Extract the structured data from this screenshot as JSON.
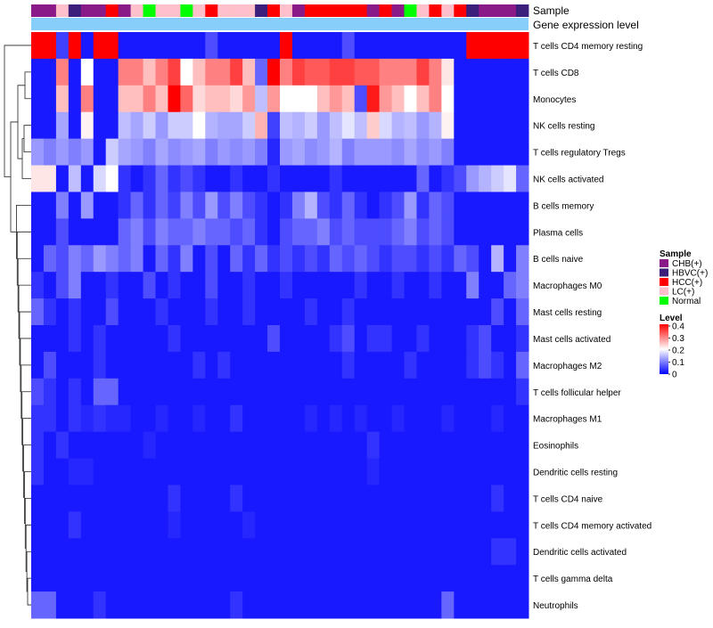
{
  "chart_data": {
    "type": "heatmap",
    "title": "",
    "annotation_rows": [
      "Sample",
      "Gene expression level"
    ],
    "rows": [
      "T cells CD4 memory resting",
      "T cells CD8",
      "Monocytes",
      "NK cells resting",
      "T cells regulatory  Tregs",
      "NK cells activated",
      "B cells memory",
      "Plasma cells",
      "B cells naive",
      "Macrophages M0",
      "Mast cells resting",
      "Mast cells activated",
      "Macrophages M2",
      "T cells follicular helper",
      "Macrophages M1",
      "Eosinophils",
      "Dendritic cells resting",
      "T cells CD4 naive",
      "T cells CD4 memory activated",
      "Dendritic cells activated",
      "T cells gamma delta",
      "Neutrophils"
    ],
    "sample_groups": [
      "CHB(+)",
      "CHB(+)",
      "LC(+)",
      "HBVC(+)",
      "CHB(+)",
      "CHB(+)",
      "HCC(+)",
      "CHB(+)",
      "LC(+)",
      "Normal",
      "LC(+)",
      "LC(+)",
      "Normal",
      "LC(+)",
      "HCC(+)",
      "LC(+)",
      "LC(+)",
      "LC(+)",
      "HBVC(+)",
      "HCC(+)",
      "LC(+)",
      "CHB(+)",
      "HCC(+)",
      "HCC(+)",
      "HCC(+)",
      "HCC(+)",
      "HCC(+)",
      "CHB(+)",
      "HCC(+)",
      "CHB(+)",
      "Normal",
      "LC(+)",
      "HCC(+)",
      "LC(+)",
      "HCC(+)",
      "HBVC(+)",
      "CHB(+)",
      "CHB(+)",
      "CHB(+)",
      "HBVC(+)"
    ],
    "values": [
      [
        0.4,
        0.4,
        0.05,
        0.4,
        0.02,
        0.4,
        0.4,
        0.02,
        0.02,
        0.02,
        0.02,
        0.02,
        0.02,
        0.02,
        0.06,
        0.02,
        0.02,
        0.02,
        0.02,
        0.02,
        0.4,
        0.02,
        0.02,
        0.02,
        0.02,
        0.06,
        0.02,
        0.02,
        0.02,
        0.02,
        0.02,
        0.02,
        0.02,
        0.02,
        0.02,
        0.4,
        0.4,
        0.4,
        0.4,
        0.4
      ],
      [
        0.02,
        0.02,
        0.3,
        0.02,
        0.2,
        0.02,
        0.02,
        0.3,
        0.3,
        0.25,
        0.3,
        0.35,
        0.2,
        0.25,
        0.3,
        0.3,
        0.35,
        0.25,
        0.08,
        0.4,
        0.3,
        0.35,
        0.33,
        0.33,
        0.35,
        0.35,
        0.33,
        0.33,
        0.3,
        0.3,
        0.3,
        0.35,
        0.3,
        0.22,
        0.02,
        0.02,
        0.02,
        0.02,
        0.02,
        0.02
      ],
      [
        0.02,
        0.02,
        0.25,
        0.02,
        0.3,
        0.02,
        0.02,
        0.25,
        0.25,
        0.3,
        0.25,
        0.4,
        0.32,
        0.23,
        0.25,
        0.25,
        0.23,
        0.28,
        0.15,
        0.28,
        0.2,
        0.2,
        0.2,
        0.25,
        0.28,
        0.25,
        0.06,
        0.38,
        0.28,
        0.25,
        0.2,
        0.25,
        0.3,
        0.2,
        0.02,
        0.02,
        0.02,
        0.02,
        0.02,
        0.02
      ],
      [
        0.02,
        0.02,
        0.13,
        0.02,
        0.21,
        0.02,
        0.02,
        0.15,
        0.13,
        0.16,
        0.12,
        0.16,
        0.16,
        0.2,
        0.14,
        0.13,
        0.13,
        0.16,
        0.26,
        0.05,
        0.15,
        0.14,
        0.16,
        0.12,
        0.15,
        0.18,
        0.15,
        0.24,
        0.17,
        0.14,
        0.15,
        0.12,
        0.14,
        0.21,
        0.02,
        0.02,
        0.02,
        0.02,
        0.02,
        0.02
      ],
      [
        0.12,
        0.1,
        0.12,
        0.1,
        0.12,
        0.02,
        0.16,
        0.13,
        0.12,
        0.1,
        0.13,
        0.11,
        0.12,
        0.13,
        0.1,
        0.12,
        0.11,
        0.12,
        0.1,
        0.03,
        0.12,
        0.13,
        0.11,
        0.12,
        0.14,
        0.1,
        0.12,
        0.12,
        0.12,
        0.11,
        0.13,
        0.11,
        0.12,
        0.1,
        0.02,
        0.02,
        0.02,
        0.02,
        0.02,
        0.02
      ],
      [
        0.22,
        0.22,
        0.02,
        0.15,
        0.02,
        0.17,
        0.2,
        0.04,
        0.02,
        0.04,
        0.08,
        0.04,
        0.06,
        0.04,
        0.02,
        0.02,
        0.04,
        0.02,
        0.02,
        0.04,
        0.02,
        0.02,
        0.02,
        0.02,
        0.04,
        0.02,
        0.02,
        0.02,
        0.02,
        0.02,
        0.02,
        0.08,
        0.02,
        0.04,
        0.06,
        0.12,
        0.14,
        0.16,
        0.18,
        0.08
      ],
      [
        0.02,
        0.02,
        0.1,
        0.02,
        0.12,
        0.02,
        0.02,
        0.04,
        0.08,
        0.04,
        0.08,
        0.05,
        0.1,
        0.06,
        0.12,
        0.06,
        0.1,
        0.06,
        0.04,
        0.02,
        0.04,
        0.1,
        0.14,
        0.06,
        0.04,
        0.08,
        0.04,
        0.02,
        0.04,
        0.06,
        0.12,
        0.04,
        0.08,
        0.06,
        0.02,
        0.02,
        0.02,
        0.02,
        0.02,
        0.02
      ],
      [
        0.02,
        0.02,
        0.06,
        0.02,
        0.02,
        0.02,
        0.02,
        0.08,
        0.1,
        0.06,
        0.1,
        0.08,
        0.08,
        0.1,
        0.08,
        0.08,
        0.06,
        0.08,
        0.04,
        0.02,
        0.06,
        0.08,
        0.08,
        0.1,
        0.06,
        0.08,
        0.06,
        0.06,
        0.06,
        0.08,
        0.1,
        0.06,
        0.08,
        0.06,
        0.02,
        0.02,
        0.02,
        0.02,
        0.02,
        0.02
      ],
      [
        0.02,
        0.08,
        0.06,
        0.1,
        0.08,
        0.12,
        0.1,
        0.08,
        0.1,
        0.02,
        0.08,
        0.04,
        0.1,
        0.02,
        0.06,
        0.02,
        0.08,
        0.04,
        0.08,
        0.04,
        0.06,
        0.04,
        0.06,
        0.04,
        0.08,
        0.06,
        0.08,
        0.06,
        0.04,
        0.06,
        0.06,
        0.04,
        0.06,
        0.04,
        0.08,
        0.06,
        0.02,
        0.14,
        0.02,
        0.1
      ],
      [
        0.04,
        0.02,
        0.06,
        0.1,
        0.02,
        0.02,
        0.04,
        0.02,
        0.02,
        0.06,
        0.02,
        0.04,
        0.02,
        0.02,
        0.06,
        0.02,
        0.02,
        0.04,
        0.02,
        0.02,
        0.04,
        0.02,
        0.02,
        0.02,
        0.02,
        0.02,
        0.04,
        0.02,
        0.02,
        0.04,
        0.02,
        0.02,
        0.04,
        0.02,
        0.02,
        0.1,
        0.02,
        0.02,
        0.08,
        0.1
      ],
      [
        0.08,
        0.04,
        0.02,
        0.04,
        0.02,
        0.02,
        0.06,
        0.02,
        0.02,
        0.02,
        0.04,
        0.02,
        0.02,
        0.02,
        0.04,
        0.02,
        0.02,
        0.04,
        0.02,
        0.02,
        0.02,
        0.02,
        0.04,
        0.02,
        0.02,
        0.04,
        0.02,
        0.02,
        0.02,
        0.02,
        0.02,
        0.02,
        0.02,
        0.02,
        0.02,
        0.02,
        0.02,
        0.06,
        0.02,
        0.08
      ],
      [
        0.02,
        0.02,
        0.02,
        0.04,
        0.02,
        0.04,
        0.02,
        0.02,
        0.02,
        0.02,
        0.02,
        0.04,
        0.02,
        0.02,
        0.02,
        0.02,
        0.02,
        0.02,
        0.02,
        0.06,
        0.02,
        0.02,
        0.02,
        0.02,
        0.04,
        0.06,
        0.02,
        0.04,
        0.04,
        0.02,
        0.02,
        0.04,
        0.02,
        0.02,
        0.02,
        0.04,
        0.06,
        0.02,
        0.02,
        0.04
      ],
      [
        0.02,
        0.06,
        0.02,
        0.02,
        0.02,
        0.04,
        0.02,
        0.02,
        0.02,
        0.02,
        0.02,
        0.02,
        0.02,
        0.04,
        0.02,
        0.04,
        0.02,
        0.02,
        0.02,
        0.02,
        0.02,
        0.02,
        0.02,
        0.02,
        0.02,
        0.04,
        0.02,
        0.02,
        0.02,
        0.02,
        0.04,
        0.02,
        0.02,
        0.02,
        0.02,
        0.04,
        0.06,
        0.04,
        0.02,
        0.08
      ],
      [
        0.06,
        0.04,
        0.02,
        0.04,
        0.02,
        0.08,
        0.08,
        0.02,
        0.02,
        0.02,
        0.02,
        0.02,
        0.02,
        0.02,
        0.02,
        0.02,
        0.02,
        0.02,
        0.02,
        0.02,
        0.02,
        0.02,
        0.02,
        0.02,
        0.02,
        0.02,
        0.02,
        0.02,
        0.02,
        0.02,
        0.02,
        0.02,
        0.02,
        0.02,
        0.02,
        0.02,
        0.02,
        0.02,
        0.02,
        0.04
      ],
      [
        0.04,
        0.04,
        0.02,
        0.04,
        0.03,
        0.04,
        0.03,
        0.03,
        0.02,
        0.02,
        0.03,
        0.02,
        0.02,
        0.03,
        0.02,
        0.02,
        0.04,
        0.02,
        0.02,
        0.02,
        0.02,
        0.02,
        0.03,
        0.02,
        0.03,
        0.02,
        0.03,
        0.02,
        0.02,
        0.03,
        0.02,
        0.02,
        0.02,
        0.03,
        0.02,
        0.02,
        0.02,
        0.03,
        0.02,
        0.02
      ],
      [
        0.04,
        0.02,
        0.04,
        0.02,
        0.02,
        0.02,
        0.02,
        0.02,
        0.02,
        0.03,
        0.02,
        0.02,
        0.02,
        0.02,
        0.02,
        0.02,
        0.02,
        0.02,
        0.02,
        0.02,
        0.02,
        0.02,
        0.02,
        0.02,
        0.02,
        0.02,
        0.02,
        0.04,
        0.02,
        0.02,
        0.02,
        0.02,
        0.02,
        0.02,
        0.02,
        0.02,
        0.02,
        0.02,
        0.02,
        0.02
      ],
      [
        0.04,
        0.02,
        0.02,
        0.03,
        0.03,
        0.02,
        0.02,
        0.02,
        0.02,
        0.02,
        0.02,
        0.02,
        0.02,
        0.02,
        0.02,
        0.02,
        0.02,
        0.02,
        0.02,
        0.02,
        0.02,
        0.02,
        0.02,
        0.02,
        0.02,
        0.02,
        0.02,
        0.03,
        0.02,
        0.02,
        0.02,
        0.02,
        0.02,
        0.02,
        0.02,
        0.02,
        0.02,
        0.02,
        0.02,
        0.02
      ],
      [
        0.02,
        0.02,
        0.02,
        0.02,
        0.02,
        0.02,
        0.02,
        0.02,
        0.02,
        0.02,
        0.02,
        0.04,
        0.02,
        0.02,
        0.02,
        0.02,
        0.04,
        0.02,
        0.02,
        0.02,
        0.02,
        0.02,
        0.02,
        0.02,
        0.02,
        0.02,
        0.02,
        0.02,
        0.02,
        0.02,
        0.02,
        0.02,
        0.02,
        0.02,
        0.02,
        0.02,
        0.02,
        0.04,
        0.02,
        0.02
      ],
      [
        0.02,
        0.02,
        0.02,
        0.04,
        0.02,
        0.02,
        0.02,
        0.02,
        0.02,
        0.02,
        0.02,
        0.03,
        0.02,
        0.02,
        0.02,
        0.02,
        0.02,
        0.03,
        0.02,
        0.02,
        0.02,
        0.02,
        0.02,
        0.02,
        0.02,
        0.02,
        0.02,
        0.02,
        0.02,
        0.02,
        0.02,
        0.02,
        0.02,
        0.02,
        0.02,
        0.02,
        0.02,
        0.02,
        0.02,
        0.02
      ],
      [
        0.02,
        0.02,
        0.02,
        0.02,
        0.02,
        0.02,
        0.02,
        0.02,
        0.02,
        0.02,
        0.02,
        0.02,
        0.02,
        0.02,
        0.02,
        0.02,
        0.02,
        0.02,
        0.02,
        0.02,
        0.02,
        0.02,
        0.02,
        0.02,
        0.02,
        0.02,
        0.02,
        0.02,
        0.02,
        0.02,
        0.02,
        0.02,
        0.02,
        0.02,
        0.02,
        0.02,
        0.02,
        0.04,
        0.04,
        0.02
      ],
      [
        0.02,
        0.02,
        0.02,
        0.02,
        0.02,
        0.02,
        0.02,
        0.02,
        0.02,
        0.02,
        0.02,
        0.02,
        0.02,
        0.02,
        0.02,
        0.02,
        0.02,
        0.02,
        0.02,
        0.02,
        0.02,
        0.02,
        0.02,
        0.02,
        0.02,
        0.02,
        0.02,
        0.02,
        0.02,
        0.02,
        0.02,
        0.02,
        0.02,
        0.02,
        0.02,
        0.02,
        0.02,
        0.02,
        0.02,
        0.02
      ],
      [
        0.08,
        0.08,
        0.02,
        0.02,
        0.02,
        0.04,
        0.02,
        0.02,
        0.02,
        0.02,
        0.02,
        0.02,
        0.02,
        0.02,
        0.02,
        0.02,
        0.04,
        0.02,
        0.02,
        0.02,
        0.02,
        0.02,
        0.02,
        0.02,
        0.02,
        0.02,
        0.02,
        0.02,
        0.02,
        0.02,
        0.02,
        0.02,
        0.02,
        0.08,
        0.02,
        0.02,
        0.02,
        0.02,
        0.02,
        0.02
      ]
    ],
    "legend": {
      "sample": {
        "title": "Sample",
        "entries": [
          {
            "label": "CHB(+)",
            "color": "#8B1A89"
          },
          {
            "label": "HBVC(+)",
            "color": "#3B1F7A"
          },
          {
            "label": "HCC(+)",
            "color": "#FF0000"
          },
          {
            "label": "LC(+)",
            "color": "#FFC0CB"
          },
          {
            "label": "Normal",
            "color": "#00FF00"
          }
        ]
      },
      "level": {
        "title": "Level",
        "min": 0,
        "max": 0.4,
        "ticks": [
          "0.4",
          "0.3",
          "0.2",
          "0.1",
          "0"
        ],
        "tick_values": [
          0.4,
          0.3,
          0.2,
          0.1,
          0
        ]
      }
    },
    "gene_expression_color": "#87CEFA",
    "colors": {
      "low": "#0000FF",
      "mid": "#FFFFFF",
      "high": "#FF0000"
    }
  }
}
